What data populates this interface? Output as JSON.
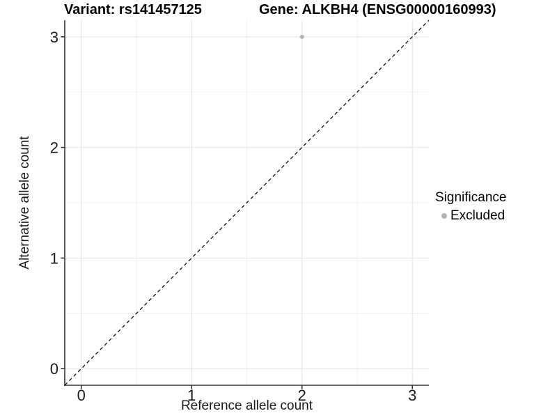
{
  "chart_data": {
    "type": "scatter",
    "title_left": "Variant: rs141457125",
    "title_right": "Gene: ALKBH4 (ENSG00000160993)",
    "xlabel": "Reference allele count",
    "ylabel": "Alternative allele count",
    "xlim": [
      -0.15,
      3.15
    ],
    "ylim": [
      -0.15,
      3.15
    ],
    "x_ticks": [
      0,
      1,
      2,
      3
    ],
    "y_ticks": [
      0,
      1,
      2,
      3
    ],
    "x_minor_gridlines": [
      0.5,
      1.5,
      2.5
    ],
    "y_minor_gridlines": [
      0.5,
      1.5,
      2.5
    ],
    "grid": "major+minor",
    "series": [
      {
        "name": "Excluded",
        "points": [
          {
            "x": 2,
            "y": 3
          }
        ],
        "color": "#b3b3b3"
      }
    ],
    "reference_line": {
      "kind": "identity",
      "slope": 1,
      "intercept": 0,
      "style": "dashed",
      "color": "#000000"
    },
    "legend": {
      "title": "Significance",
      "position": "right",
      "items": [
        {
          "label": "Excluded",
          "color": "#b3b3b3",
          "marker": "circle"
        }
      ]
    },
    "colors": {
      "background": "#ffffff",
      "point": "#b3b3b3",
      "grid_major": "#e3e3e3",
      "grid_minor": "#efefef",
      "axis_line": "#333333",
      "tick_text": "#1a1a1a"
    }
  }
}
